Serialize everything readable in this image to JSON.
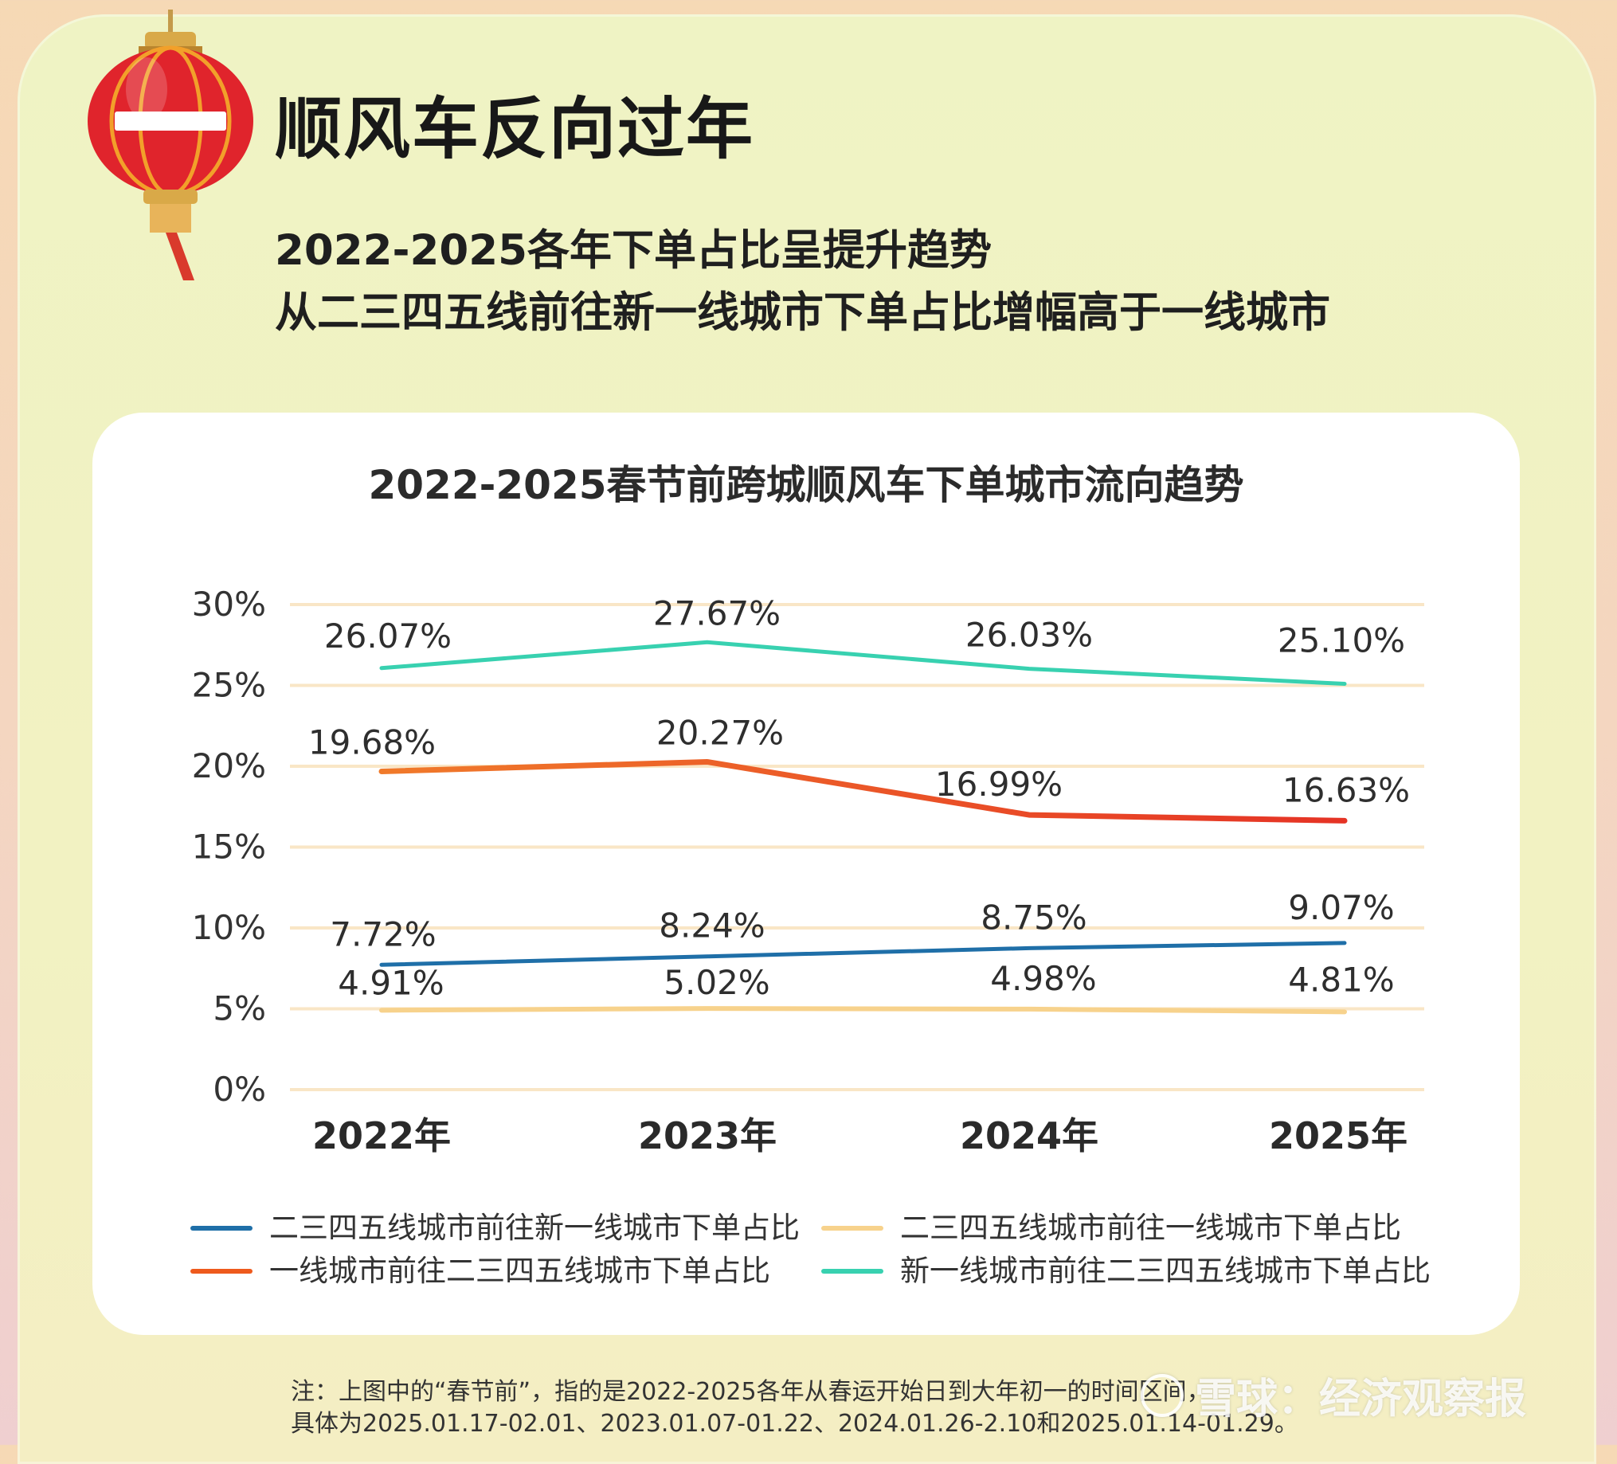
{
  "header": {
    "title": "顺风车反向过年",
    "subtitle1": "2022-2025各年下单占比呈提升趋势",
    "subtitle2": "从二三四五线前往新一线城市下单占比增幅高于一线城市",
    "lantern_char": "一"
  },
  "chart_data": {
    "type": "line",
    "title": "2022-2025春节前跨城顺风车下单城市流向趋势",
    "categories": [
      "2022年",
      "2023年",
      "2024年",
      "2025年"
    ],
    "ylim": [
      0,
      30
    ],
    "yticks": [
      "0%",
      "5%",
      "10%",
      "15%",
      "20%",
      "25%",
      "30%"
    ],
    "grid": true,
    "series": [
      {
        "name": "二三四五线城市前往新一线城市下单占比",
        "color": "#1f6fa8",
        "values": [
          7.72,
          8.24,
          8.75,
          9.07
        ],
        "labels": [
          "7.72%",
          "8.24%",
          "8.75%",
          "9.07%"
        ]
      },
      {
        "name": "二三四五线城市前往一线城市下单占比",
        "color": "#f7d28c",
        "values": [
          4.91,
          5.02,
          4.98,
          4.81
        ],
        "labels": [
          "4.91%",
          "5.02%",
          "4.98%",
          "4.81%"
        ]
      },
      {
        "name": "一线城市前往二三四五线城市下单占比",
        "color": "#ee5a1d",
        "values": [
          19.68,
          20.27,
          16.99,
          16.63
        ],
        "labels": [
          "19.68%",
          "20.27%",
          "16.99%",
          "16.63%"
        ]
      },
      {
        "name": "新一线城市前往二三四五线城市下单占比",
        "color": "#38d1b0",
        "values": [
          26.07,
          27.67,
          26.03,
          25.1
        ],
        "labels": [
          "26.07%",
          "27.67%",
          "26.03%",
          "25.10%"
        ]
      }
    ],
    "legend": "bottom"
  },
  "note": {
    "line1": "注：上图中的“春节前”，指的是2022-2025各年从春运开始日到大年初一的时间区间，",
    "line2": "具体为2025.01.17-02.01、2023.01.07-01.22、2024.01.26-2.10和2025.01.14-01.29。"
  },
  "watermark": "雪球：经济观察报"
}
